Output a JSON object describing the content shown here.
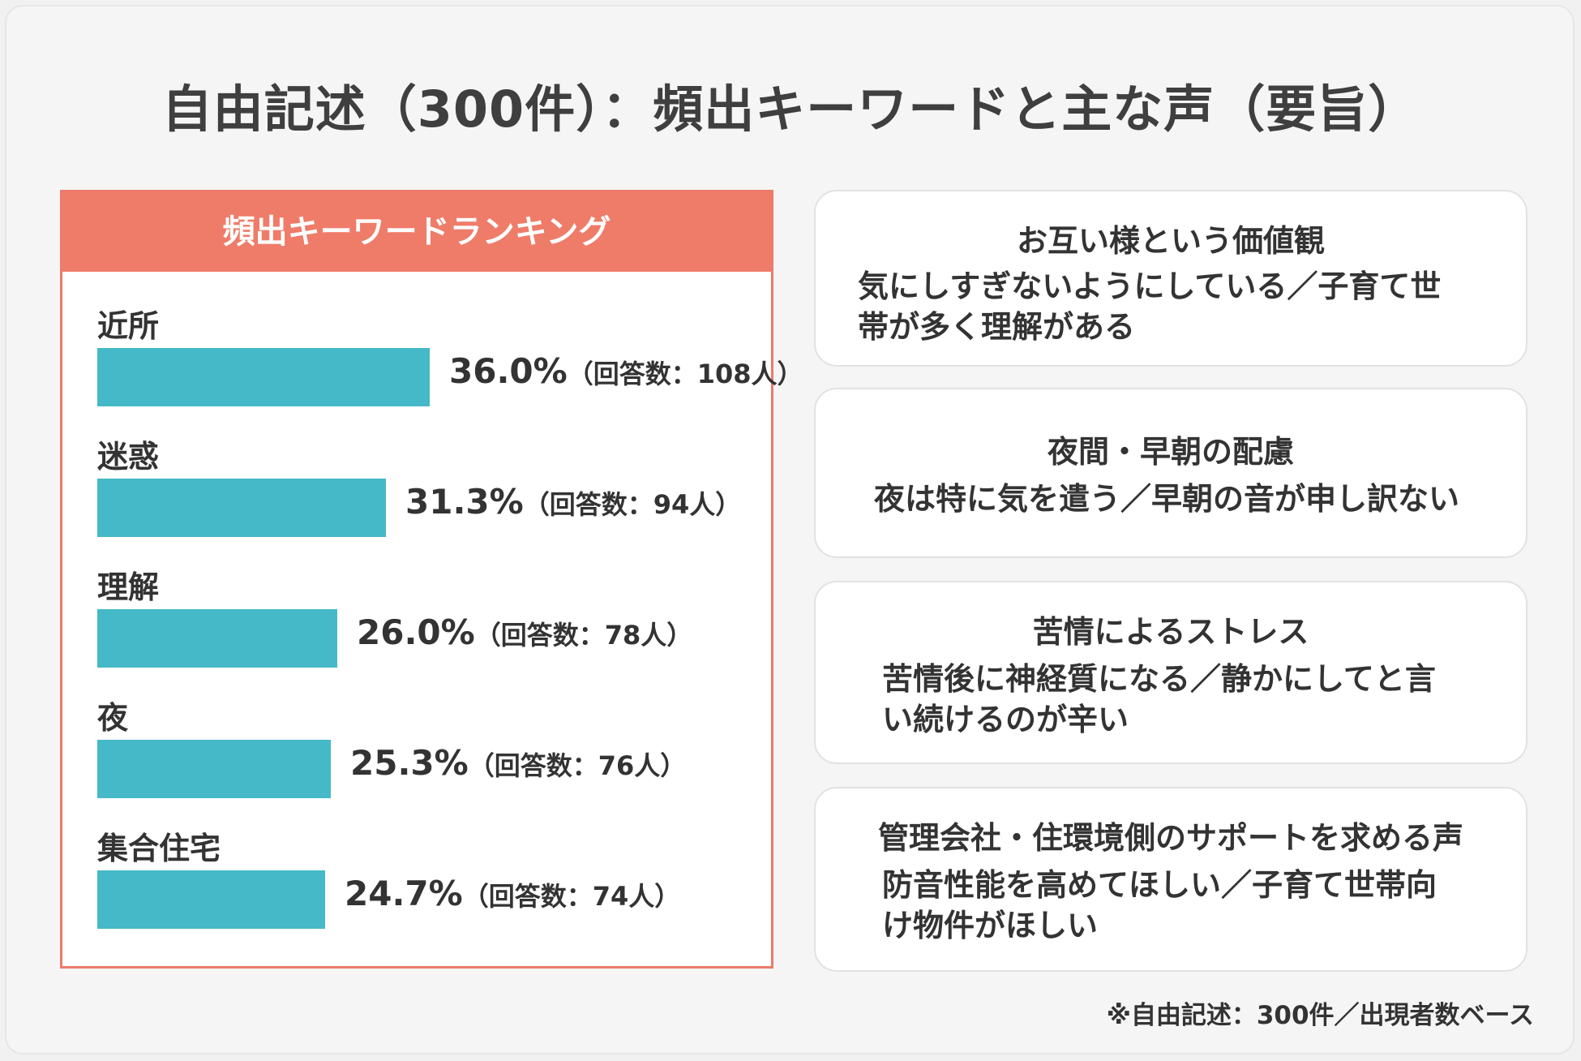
{
  "title": "自由記述（300件）：頻出キーワードと主な声（要旨）",
  "ranking": {
    "header": "頻出キーワードランキング",
    "items": [
      {
        "label": "近所",
        "percent_text": "36.0%",
        "count_text": "（回答数：108人）"
      },
      {
        "label": "迷惑",
        "percent_text": "31.3%",
        "count_text": "（回答数：94人）"
      },
      {
        "label": "理解",
        "percent_text": "26.0%",
        "count_text": "（回答数：78人）"
      },
      {
        "label": "夜",
        "percent_text": "25.3%",
        "count_text": "（回答数：76人）"
      },
      {
        "label": "集合住宅",
        "percent_text": "24.7%",
        "count_text": "（回答数：74人）"
      }
    ]
  },
  "chart_data": {
    "type": "bar",
    "orientation": "horizontal",
    "title": "頻出キーワードランキング",
    "categories": [
      "近所",
      "迷惑",
      "理解",
      "夜",
      "集合住宅"
    ],
    "values": [
      36.0,
      31.3,
      26.0,
      25.3,
      24.7
    ],
    "counts": [
      108,
      94,
      78,
      76,
      74
    ],
    "unit": "%",
    "bar_color": "#45b9c7"
  },
  "voices": [
    {
      "title": "お互い様という価値観",
      "line1": "気にしすぎないようにしている／子育て世",
      "line2": "帯が多く理解がある"
    },
    {
      "title": "夜間・早朝の配慮",
      "line1": "夜は特に気を遣う／早朝の音が申し訳ない",
      "line2": ""
    },
    {
      "title": "苦情によるストレス",
      "line1": "苦情後に神経質になる／静かにしてと言",
      "line2": "い続けるのが辛い"
    },
    {
      "title": "管理会社・住環境側のサポートを求める声",
      "line1": "防音性能を高めてほしい／子育て世帯向",
      "line2": "け物件がほしい"
    }
  ],
  "footnote": "※自由記述：300件／出現者数ベース",
  "colors": {
    "accent": "#ef7c69",
    "bar": "#45b9c7",
    "background": "#f5f5f6",
    "text": "#333333"
  }
}
